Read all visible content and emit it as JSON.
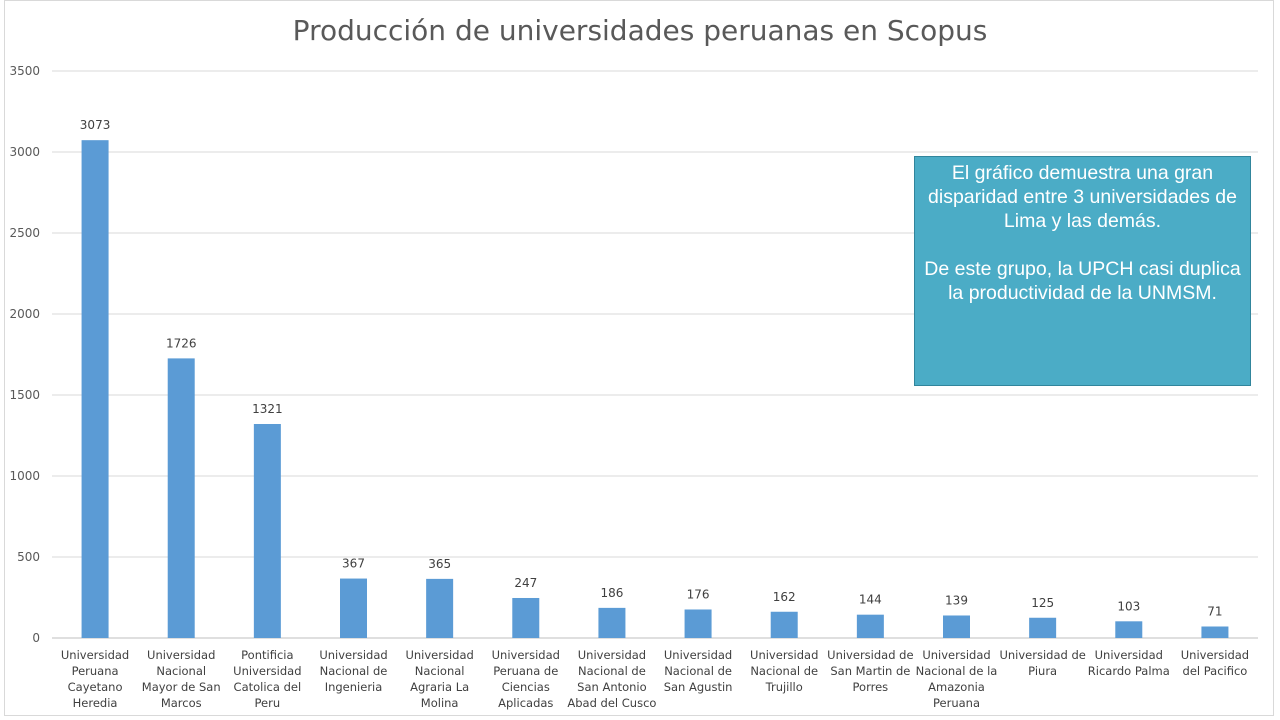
{
  "chart_data": {
    "type": "bar",
    "title": "Producción de universidades peruanas en Scopus",
    "xlabel": "",
    "ylabel": "",
    "ylim": [
      0,
      3500
    ],
    "yticks": [
      0,
      500,
      1000,
      1500,
      2000,
      2500,
      3000,
      3500
    ],
    "grid": true,
    "bar_color": "#5b9bd5",
    "categories": [
      [
        "Universidad",
        "Peruana",
        "Cayetano",
        "Heredia"
      ],
      [
        "Universidad",
        "Nacional",
        "Mayor de San",
        "Marcos"
      ],
      [
        "Pontificia",
        "Universidad",
        "Catolica del",
        "Peru"
      ],
      [
        "Universidad",
        "Nacional de",
        "Ingenieria"
      ],
      [
        "Universidad",
        "Nacional",
        "Agraria La",
        "Molina"
      ],
      [
        "Universidad",
        "Peruana de",
        "Ciencias",
        "Aplicadas"
      ],
      [
        "Universidad",
        "Nacional de",
        "San Antonio",
        "Abad del Cusco"
      ],
      [
        "Universidad",
        "Nacional de",
        "San Agustin"
      ],
      [
        "Universidad",
        "Nacional de",
        "Trujillo"
      ],
      [
        "Universidad de",
        "San Martin de",
        "Porres"
      ],
      [
        "Universidad",
        "Nacional de la",
        "Amazonia",
        "Peruana"
      ],
      [
        "Universidad de",
        "Piura"
      ],
      [
        "Universidad",
        "Ricardo Palma"
      ],
      [
        "Universidad",
        "del Pacifico"
      ]
    ],
    "values": [
      3073,
      1726,
      1321,
      367,
      365,
      247,
      186,
      176,
      162,
      144,
      139,
      125,
      103,
      71
    ]
  },
  "annotation": {
    "line1": "El gráfico demuestra una gran disparidad entre 3 universidades de Lima y las demás.",
    "line2": "De este grupo, la UPCH casi duplica la productividad de la UNMSM.",
    "fill_color": "#4bacc6"
  }
}
